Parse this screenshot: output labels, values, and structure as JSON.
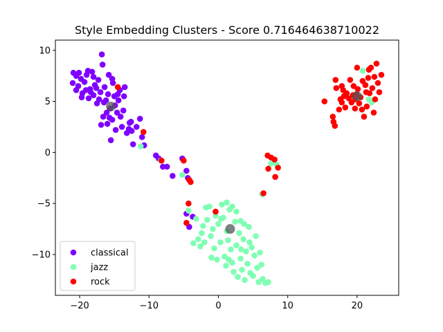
{
  "chart_data": {
    "type": "scatter",
    "title": "Style Embedding Clusters - Score 0.716464638710022",
    "xlabel": "",
    "ylabel": "",
    "xlim": [
      -23.5,
      26
    ],
    "ylim": [
      -14,
      11
    ],
    "xticks": [
      -20,
      -10,
      0,
      10,
      20
    ],
    "yticks": [
      -10,
      -5,
      0,
      5,
      10
    ],
    "xtick_labels": [
      "−20",
      "−10",
      "0",
      "10",
      "20"
    ],
    "ytick_labels": [
      "−10",
      "−5",
      "0",
      "5",
      "10"
    ],
    "grid": false,
    "legend_position": "lower-left",
    "series": [
      {
        "name": "classical",
        "color": "#7f00ff",
        "points": [
          [
            -21,
            6.8
          ],
          [
            -20.5,
            7.5
          ],
          [
            -20.2,
            6.5
          ],
          [
            -19.8,
            7.2
          ],
          [
            -19.6,
            5.8
          ],
          [
            -19.3,
            6.9
          ],
          [
            -19,
            7.6
          ],
          [
            -18.7,
            5.3
          ],
          [
            -18.5,
            6.2
          ],
          [
            -18.2,
            7.9
          ],
          [
            -18,
            5.6
          ],
          [
            -17.8,
            6.6
          ],
          [
            -17.5,
            4.8
          ],
          [
            -17.3,
            7.1
          ],
          [
            -17,
            5.9
          ],
          [
            -16.8,
            9.6
          ],
          [
            -16.7,
            8.6
          ],
          [
            -16.6,
            3.5
          ],
          [
            -16.4,
            6.4
          ],
          [
            -16.2,
            5.1
          ],
          [
            -16,
            2.8
          ],
          [
            -15.8,
            7.6
          ],
          [
            -15.6,
            4.3
          ],
          [
            -15.5,
            1.2
          ],
          [
            -15.3,
            3.2
          ],
          [
            -15.2,
            6.8
          ],
          [
            -15,
            5.5
          ],
          [
            -14.8,
            2.2
          ],
          [
            -14.6,
            3.9
          ],
          [
            -14.4,
            5.1
          ],
          [
            -14.2,
            6.1
          ],
          [
            -13.9,
            2.5
          ],
          [
            -13.7,
            4.1
          ],
          [
            -13.5,
            6.4
          ],
          [
            -13.2,
            1.9
          ],
          [
            -12.9,
            2.3
          ],
          [
            -12.6,
            3
          ],
          [
            -12.3,
            0.8
          ],
          [
            -11.8,
            2.5
          ],
          [
            -11.3,
            3.3
          ],
          [
            -11,
            1.5
          ],
          [
            -10.7,
            0.7
          ],
          [
            -9,
            -0.3
          ],
          [
            -8.6,
            -0.6
          ],
          [
            -8,
            -1.4
          ],
          [
            -7.4,
            -1.4
          ],
          [
            -6.6,
            -2.3
          ],
          [
            -5.2,
            -0.6
          ],
          [
            -4.6,
            -1.8
          ],
          [
            -4.4,
            -2.5
          ],
          [
            -4.6,
            -6
          ],
          [
            -4.2,
            -7.3
          ],
          [
            -3.7,
            -6.3
          ],
          [
            -20.9,
            7.8
          ],
          [
            -20.5,
            6.1
          ],
          [
            -19.7,
            5.4
          ],
          [
            -18.8,
            8
          ],
          [
            -18,
            7.4
          ],
          [
            -17.2,
            5.2
          ],
          [
            -16.9,
            2.7
          ],
          [
            -16.1,
            3.9
          ],
          [
            -15.9,
            5.7
          ],
          [
            -15.3,
            7.2
          ],
          [
            -14.9,
            4.6
          ],
          [
            -14.5,
            5.7
          ],
          [
            -14.1,
            3.5
          ],
          [
            -13.6,
            5.5
          ],
          [
            -12.8,
            2.9
          ],
          [
            -12.5,
            2.1
          ],
          [
            -17.6,
            6.3
          ],
          [
            -16.5,
            4.9
          ],
          [
            -19.1,
            6.1
          ],
          [
            -18.4,
            5.9
          ],
          [
            -20.1,
            7.8
          ],
          [
            -15.7,
            3.4
          ]
        ]
      },
      {
        "name": "jazz",
        "color": "#80ffb4",
        "points": [
          [
            -11.2,
            0.6
          ],
          [
            -8.3,
            -0.8
          ],
          [
            -5.2,
            -2.2
          ],
          [
            -4.3,
            -5.7
          ],
          [
            -3.2,
            -6.5
          ],
          [
            -2.9,
            -8.5
          ],
          [
            -2.6,
            -9.2
          ],
          [
            -2.4,
            -7.9
          ],
          [
            -2.2,
            -7.2
          ],
          [
            -2,
            -8.8
          ],
          [
            -1.6,
            -6.6
          ],
          [
            -1.3,
            -5.3
          ],
          [
            -1.1,
            -8.2
          ],
          [
            -1,
            -10.3
          ],
          [
            -0.8,
            -7.5
          ],
          [
            -0.6,
            -9.4
          ],
          [
            -0.4,
            -6.2
          ],
          [
            -0.2,
            -10.5
          ],
          [
            0,
            -7
          ],
          [
            0.3,
            -8.8
          ],
          [
            0.5,
            -5.1
          ],
          [
            0.7,
            -6.4
          ],
          [
            0.9,
            -10.2
          ],
          [
            1.1,
            -11.1
          ],
          [
            1.2,
            -7.7
          ],
          [
            1.4,
            -8.6
          ],
          [
            1.6,
            -5.6
          ],
          [
            1.8,
            -9.5
          ],
          [
            2,
            -10.8
          ],
          [
            2.2,
            -11.7
          ],
          [
            2.4,
            -6.8
          ],
          [
            2.6,
            -9.1
          ],
          [
            2.8,
            -12.2
          ],
          [
            3,
            -7.9
          ],
          [
            3.2,
            -10.4
          ],
          [
            3.4,
            -11.5
          ],
          [
            3.6,
            -8.5
          ],
          [
            3.8,
            -12.5
          ],
          [
            4,
            -9.7
          ],
          [
            4.2,
            -10.9
          ],
          [
            4.4,
            -7.3
          ],
          [
            4.6,
            -11.8
          ],
          [
            4.8,
            -9.3
          ],
          [
            5,
            -12.1
          ],
          [
            5.2,
            -10.1
          ],
          [
            5.4,
            -8.2
          ],
          [
            5.6,
            -11.3
          ],
          [
            5.8,
            -12.7
          ],
          [
            6,
            -9.8
          ],
          [
            6.2,
            -11
          ],
          [
            6.4,
            -12.4
          ],
          [
            6.8,
            -12.8
          ],
          [
            7.2,
            -12.7
          ],
          [
            1.2,
            -4.9
          ],
          [
            2,
            -5.3
          ],
          [
            2.6,
            -5.8
          ],
          [
            3.2,
            -6.7
          ],
          [
            3.7,
            -7
          ],
          [
            4.5,
            -8.8
          ],
          [
            -3.6,
            -8.9
          ],
          [
            -1.8,
            -5.4
          ],
          [
            6.3,
            -4.1
          ],
          [
            7.6,
            -1.1
          ],
          [
            8.4,
            -1.2
          ],
          [
            20.8,
            8
          ],
          [
            21.7,
            5.2
          ],
          [
            22.1,
            4.9
          ],
          [
            0.4,
            -6.5
          ],
          [
            1.5,
            -10.5
          ],
          [
            3.3,
            -9.5
          ]
        ]
      },
      {
        "name": "rock",
        "color": "#ff0000",
        "points": [
          [
            -14.5,
            6.4
          ],
          [
            -10.8,
            2
          ],
          [
            -8.2,
            -0.8
          ],
          [
            -5,
            -0.8
          ],
          [
            -4.2,
            -2.7
          ],
          [
            -4,
            -2.9
          ],
          [
            -4.3,
            -5
          ],
          [
            -4.6,
            -6.9
          ],
          [
            -0.4,
            -5.8
          ],
          [
            6.5,
            -4
          ],
          [
            7.1,
            -0.3
          ],
          [
            7.6,
            -0.5
          ],
          [
            7.2,
            -1.6
          ],
          [
            8.1,
            -0.7
          ],
          [
            8.6,
            -1.5
          ],
          [
            8.2,
            -2.4
          ],
          [
            15.3,
            5
          ],
          [
            16.6,
            3
          ],
          [
            16.8,
            2.6
          ],
          [
            16.9,
            7.1
          ],
          [
            17,
            6.3
          ],
          [
            17.4,
            4.2
          ],
          [
            17.6,
            5.2
          ],
          [
            17.8,
            4.9
          ],
          [
            18,
            6.1
          ],
          [
            18.3,
            4.4
          ],
          [
            18.5,
            5.8
          ],
          [
            18.8,
            5.3
          ],
          [
            19,
            7.1
          ],
          [
            19.2,
            4.9
          ],
          [
            19.5,
            6.5
          ],
          [
            19.7,
            4.3
          ],
          [
            19.9,
            5.7
          ],
          [
            20.1,
            6.2
          ],
          [
            20.3,
            4.8
          ],
          [
            20.5,
            5.4
          ],
          [
            20.8,
            7
          ],
          [
            21,
            3.5
          ],
          [
            21.2,
            6.6
          ],
          [
            21.4,
            4.5
          ],
          [
            21.6,
            7.3
          ],
          [
            21.8,
            5.8
          ],
          [
            22,
            8.3
          ],
          [
            22.2,
            6.3
          ],
          [
            22.4,
            3.9
          ],
          [
            22.6,
            5.2
          ],
          [
            22.8,
            8.7
          ],
          [
            23,
            6.8
          ],
          [
            23.2,
            5.9
          ],
          [
            23.5,
            7.6
          ],
          [
            19.7,
            5.2
          ],
          [
            20,
            8.3
          ],
          [
            18.1,
            5.5
          ],
          [
            17.8,
            6.5
          ],
          [
            20.7,
            4.2
          ],
          [
            21.7,
            8.1
          ],
          [
            22.5,
            7.4
          ],
          [
            16.5,
            3.5
          ],
          [
            19.4,
            5.6
          ],
          [
            21.3,
            5.9
          ]
        ]
      }
    ],
    "centroids": {
      "color": "#555555",
      "points": [
        [
          -15.5,
          4.5
        ],
        [
          1.7,
          -7.5
        ],
        [
          20,
          5.5
        ]
      ]
    }
  }
}
